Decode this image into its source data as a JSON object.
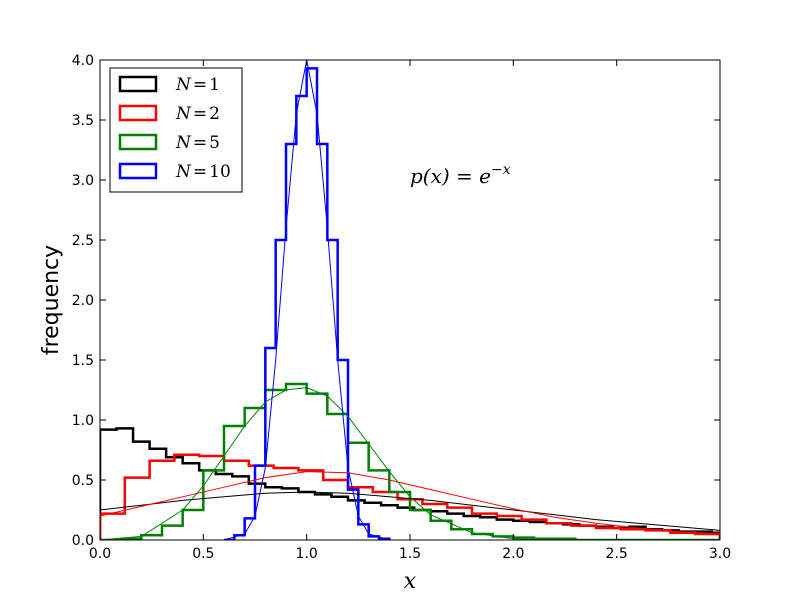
{
  "chart_data": {
    "type": "line",
    "title": "",
    "annotation": "p(x) = e^{-x}",
    "annotation_parts": {
      "base": "p(x) = e",
      "exp": "−x"
    },
    "xlabel": "x",
    "ylabel": "frequency",
    "xlim": [
      0.0,
      3.0
    ],
    "ylim": [
      0.0,
      4.0
    ],
    "xticks": [
      0.0,
      0.5,
      1.0,
      1.5,
      2.0,
      2.5,
      3.0
    ],
    "yticks": [
      0.0,
      0.5,
      1.0,
      1.5,
      2.0,
      2.5,
      3.0,
      3.5,
      4.0
    ],
    "xtick_labels": [
      "0.0",
      "0.5",
      "1.0",
      "1.5",
      "2.0",
      "2.5",
      "3.0"
    ],
    "ytick_labels": [
      "0.0",
      "0.5",
      "1.0",
      "1.5",
      "2.0",
      "2.5",
      "3.0",
      "3.5",
      "4.0"
    ],
    "grid": false,
    "legend_position": "top-left",
    "series": [
      {
        "name": "N = 1",
        "legend_parts": {
          "var": "N",
          "eq": "=",
          "num": "1"
        },
        "color": "#000000",
        "hist": {
          "edges": [
            0.0,
            0.08,
            0.16,
            0.24,
            0.32,
            0.4,
            0.48,
            0.56,
            0.64,
            0.72,
            0.8,
            0.88,
            0.96,
            1.04,
            1.12,
            1.2,
            1.28,
            1.36,
            1.44,
            1.52,
            1.6,
            1.68,
            1.76,
            1.84,
            1.92,
            2.0,
            2.08,
            2.16,
            2.24,
            2.32,
            2.4,
            2.48,
            2.56,
            2.64,
            2.72,
            2.8,
            2.88,
            2.96,
            3.0
          ],
          "values": [
            0.92,
            0.93,
            0.82,
            0.76,
            0.69,
            0.64,
            0.58,
            0.55,
            0.53,
            0.47,
            0.44,
            0.43,
            0.4,
            0.38,
            0.36,
            0.33,
            0.31,
            0.29,
            0.27,
            0.25,
            0.24,
            0.22,
            0.2,
            0.19,
            0.17,
            0.16,
            0.15,
            0.14,
            0.13,
            0.12,
            0.11,
            0.1,
            0.11,
            0.09,
            0.08,
            0.07,
            0.07,
            0.06
          ]
        },
        "fit": {
          "x": [
            0.0,
            0.2,
            0.4,
            0.6,
            0.8,
            1.0,
            1.2,
            1.4,
            1.6,
            1.8,
            2.0,
            2.2,
            2.4,
            2.6,
            2.8,
            3.0
          ],
          "y": [
            0.25,
            0.29,
            0.33,
            0.36,
            0.39,
            0.4,
            0.39,
            0.36,
            0.33,
            0.29,
            0.25,
            0.21,
            0.17,
            0.14,
            0.11,
            0.08
          ]
        }
      },
      {
        "name": "N = 2",
        "legend_parts": {
          "var": "N",
          "eq": "=",
          "num": "2"
        },
        "color": "#ff0000",
        "hist": {
          "edges": [
            0.0,
            0.12,
            0.24,
            0.36,
            0.48,
            0.6,
            0.72,
            0.84,
            0.96,
            1.08,
            1.2,
            1.32,
            1.44,
            1.56,
            1.68,
            1.8,
            1.92,
            2.04,
            2.16,
            2.28,
            2.4,
            2.52,
            2.64,
            2.76,
            2.88,
            3.0
          ],
          "values": [
            0.22,
            0.52,
            0.66,
            0.71,
            0.7,
            0.66,
            0.62,
            0.6,
            0.58,
            0.5,
            0.44,
            0.4,
            0.34,
            0.3,
            0.27,
            0.22,
            0.2,
            0.17,
            0.14,
            0.12,
            0.1,
            0.09,
            0.08,
            0.06,
            0.05
          ]
        },
        "fit": {
          "x": [
            0.0,
            0.2,
            0.4,
            0.6,
            0.8,
            1.0,
            1.2,
            1.4,
            1.6,
            1.8,
            2.0,
            2.2,
            2.4,
            2.6,
            2.8,
            3.0
          ],
          "y": [
            0.2,
            0.28,
            0.36,
            0.44,
            0.52,
            0.57,
            0.56,
            0.5,
            0.42,
            0.34,
            0.26,
            0.19,
            0.14,
            0.1,
            0.07,
            0.05
          ]
        }
      },
      {
        "name": "N = 5",
        "legend_parts": {
          "var": "N",
          "eq": "=",
          "num": "5"
        },
        "color": "#008000",
        "hist": {
          "edges": [
            0.0,
            0.1,
            0.2,
            0.3,
            0.4,
            0.5,
            0.6,
            0.7,
            0.8,
            0.9,
            1.0,
            1.1,
            1.2,
            1.3,
            1.4,
            1.5,
            1.6,
            1.7,
            1.8,
            1.9,
            2.0,
            2.1,
            2.2,
            2.3,
            2.4,
            2.5,
            2.6,
            2.7,
            2.8,
            2.9,
            3.0
          ],
          "values": [
            0.0,
            0.01,
            0.04,
            0.12,
            0.25,
            0.58,
            0.95,
            1.1,
            1.25,
            1.3,
            1.22,
            1.05,
            0.81,
            0.58,
            0.4,
            0.25,
            0.16,
            0.09,
            0.05,
            0.03,
            0.02,
            0.01,
            0.01,
            0.0,
            0.0,
            0.0,
            0.0,
            0.0,
            0.0,
            0.0
          ]
        },
        "fit": {
          "x": [
            0.0,
            0.2,
            0.4,
            0.5,
            0.6,
            0.7,
            0.8,
            0.9,
            1.0,
            1.1,
            1.2,
            1.3,
            1.4,
            1.5,
            1.6,
            1.8,
            2.0,
            2.2,
            2.5,
            3.0
          ],
          "y": [
            0.0,
            0.03,
            0.25,
            0.45,
            0.7,
            0.95,
            1.15,
            1.25,
            1.27,
            1.2,
            1.03,
            0.8,
            0.57,
            0.36,
            0.21,
            0.06,
            0.01,
            0.0,
            0.0,
            0.0
          ]
        }
      },
      {
        "name": "N = 10",
        "legend_parts": {
          "var": "N",
          "eq": "=",
          "num": "10"
        },
        "color": "#0000ff",
        "hist": {
          "edges": [
            0.6,
            0.65,
            0.7,
            0.75,
            0.8,
            0.85,
            0.9,
            0.95,
            1.0,
            1.05,
            1.1,
            1.15,
            1.2,
            1.25,
            1.3,
            1.35,
            1.4
          ],
          "values": [
            0.0,
            0.04,
            0.18,
            0.62,
            1.6,
            2.5,
            3.3,
            3.7,
            3.93,
            3.3,
            2.5,
            1.5,
            0.42,
            0.13,
            0.03,
            0.01
          ]
        },
        "fit": {
          "x": [
            0.6,
            0.7,
            0.75,
            0.8,
            0.85,
            0.9,
            0.95,
            1.0,
            1.05,
            1.1,
            1.15,
            1.2,
            1.25,
            1.3,
            1.4
          ],
          "y": [
            0.0,
            0.05,
            0.2,
            0.6,
            1.5,
            2.6,
            3.55,
            4.0,
            3.55,
            2.6,
            1.5,
            0.6,
            0.2,
            0.05,
            0.0
          ]
        }
      }
    ]
  }
}
